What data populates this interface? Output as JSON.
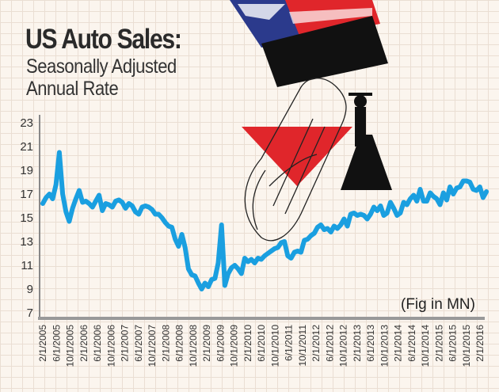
{
  "chart_data": {
    "type": "line",
    "title": "US Auto Sales:",
    "subtitle_lines": [
      "Seasonally Adjusted",
      "Annual Rate"
    ],
    "unit_note": "(Fig in MN)",
    "ylim": [
      7,
      23
    ],
    "yticks": [
      7,
      9,
      11,
      13,
      15,
      17,
      19,
      21,
      23
    ],
    "x_start": "2/1/2005",
    "x_frequency": "monthly",
    "xtick_labels": [
      "2/1/2005",
      "6/1/2005",
      "10/1/2005",
      "2/1/2006",
      "6/1/2006",
      "10/1/2006",
      "2/1/2007",
      "6/1/2007",
      "10/1/2007",
      "2/1/2008",
      "6/1/2008",
      "10/1/2008",
      "2/1/2009",
      "6/1/2009",
      "10/1/2009",
      "2/1/2010",
      "6/1/2010",
      "10/1/2010",
      "6/1/2011",
      "10/1/2011",
      "2/1/2012",
      "6/1/2012",
      "10/1/2012",
      "2/1/2013",
      "6/1/2013",
      "10/1/2013",
      "2/1/2014",
      "6/1/2014",
      "10/1/2014",
      "2/1/2015",
      "6/1/2015",
      "10/1/2015",
      "2/1/2016"
    ],
    "grid": true,
    "line_color": "#1a9fe0",
    "values": [
      16.2,
      16.7,
      17.0,
      16.6,
      17.8,
      20.5,
      17.0,
      15.5,
      14.7,
      15.8,
      16.6,
      17.3,
      16.3,
      16.4,
      16.2,
      15.9,
      16.4,
      16.9,
      15.6,
      16.2,
      16.1,
      15.9,
      16.4,
      16.5,
      16.3,
      15.8,
      16.2,
      16.0,
      15.5,
      15.3,
      15.9,
      16.0,
      15.9,
      15.7,
      15.3,
      15.3,
      15.0,
      14.6,
      14.3,
      14.2,
      13.2,
      12.6,
      13.6,
      12.5,
      10.7,
      10.2,
      10.1,
      9.5,
      9.0,
      9.5,
      9.2,
      9.8,
      9.9,
      11.2,
      14.4,
      9.3,
      10.3,
      10.8,
      11.0,
      10.7,
      10.3,
      11.6,
      11.3,
      11.5,
      11.2,
      11.6,
      11.5,
      11.8,
      12.0,
      12.2,
      12.4,
      12.5,
      12.9,
      13.0,
      11.8,
      11.6,
      12.1,
      12.2,
      12.1,
      13.1,
      13.2,
      13.5,
      13.7,
      14.2,
      14.4,
      14.0,
      14.1,
      13.8,
      14.3,
      14.1,
      14.4,
      14.9,
      14.3,
      15.3,
      15.4,
      15.2,
      15.3,
      15.2,
      14.9,
      15.3,
      15.9,
      15.6,
      16.0,
      15.2,
      15.4,
      16.3,
      15.8,
      15.2,
      15.4,
      16.3,
      16.1,
      16.6,
      16.9,
      16.4,
      17.4,
      16.4,
      16.4,
      17.1,
      16.8,
      16.6,
      16.1,
      17.1,
      16.5,
      17.6,
      17.0,
      17.5,
      17.6,
      18.1,
      18.1,
      18.0,
      17.4,
      17.3,
      17.6,
      16.7,
      17.2
    ]
  },
  "illustration": {
    "icons": [
      "us-flag",
      "down-arrow",
      "car-sketch",
      "person-silhouette"
    ],
    "colors": {
      "red": "#e0262b",
      "blue": "#2b3a8c",
      "black": "#111111"
    }
  }
}
